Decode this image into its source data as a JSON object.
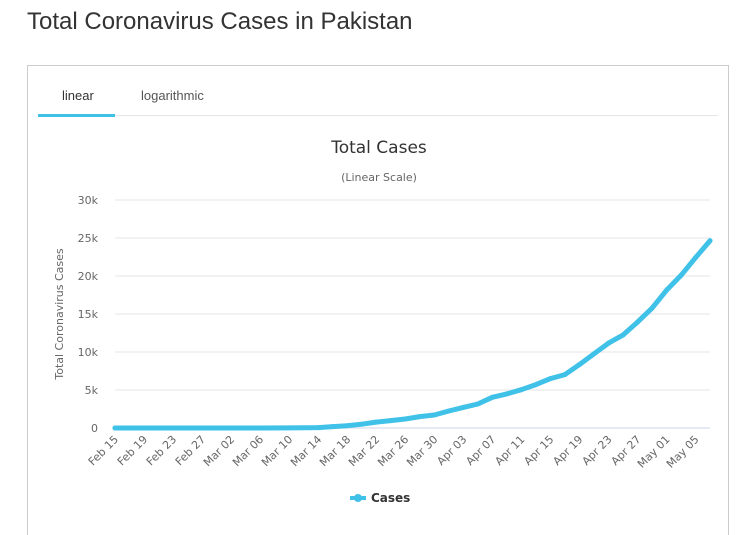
{
  "page": {
    "title": "Total Coronavirus Cases in Pakistan"
  },
  "tabs": [
    {
      "label": "linear",
      "active": true
    },
    {
      "label": "logarithmic",
      "active": false
    }
  ],
  "colors": {
    "accent": "#3fc1e8",
    "series": "#3fc1e8",
    "text": "#333333",
    "grid": "#e6e6e6"
  },
  "chart_data": {
    "type": "line",
    "title": "Total Cases",
    "subtitle": "(Linear Scale)",
    "ylabel": "Total Coronavirus Cases",
    "xlabel": "",
    "ylim": [
      0,
      30000
    ],
    "yticks": [
      0,
      5000,
      10000,
      15000,
      20000,
      25000,
      30000
    ],
    "ytick_labels": [
      "0",
      "5k",
      "10k",
      "15k",
      "20k",
      "25k",
      "30k"
    ],
    "x_tick_labels": [
      "Feb 15",
      "Feb 19",
      "Feb 23",
      "Feb 27",
      "Mar 02",
      "Mar 06",
      "Mar 10",
      "Mar 14",
      "Mar 18",
      "Mar 22",
      "Mar 26",
      "Mar 30",
      "Apr 03",
      "Apr 07",
      "Apr 11",
      "Apr 15",
      "Apr 19",
      "Apr 23",
      "Apr 27",
      "May 01",
      "May 05"
    ],
    "grid": true,
    "legend_position": "bottom-center",
    "series": [
      {
        "name": "Cases",
        "x": [
          "Feb 15",
          "Feb 19",
          "Feb 23",
          "Feb 27",
          "Mar 02",
          "Mar 06",
          "Mar 10",
          "Mar 14",
          "Mar 16",
          "Mar 18",
          "Mar 20",
          "Mar 22",
          "Mar 24",
          "Mar 26",
          "Mar 28",
          "Mar 30",
          "Apr 01",
          "Apr 03",
          "Apr 05",
          "Apr 07",
          "Apr 09",
          "Apr 11",
          "Apr 13",
          "Apr 15",
          "Apr 17",
          "Apr 19",
          "Apr 21",
          "Apr 23",
          "Apr 25",
          "Apr 27",
          "Apr 29",
          "May 01",
          "May 03",
          "May 05",
          "May 07"
        ],
        "values": [
          0,
          0,
          0,
          0,
          2,
          6,
          19,
          53,
          186,
          302,
          495,
          776,
          972,
          1179,
          1495,
          1717,
          2238,
          2708,
          3157,
          4035,
          4489,
          5038,
          5716,
          6505,
          7025,
          8348,
          9749,
          11155,
          12227,
          13915,
          15759,
          18114,
          20084,
          22413,
          24644
        ]
      }
    ]
  }
}
